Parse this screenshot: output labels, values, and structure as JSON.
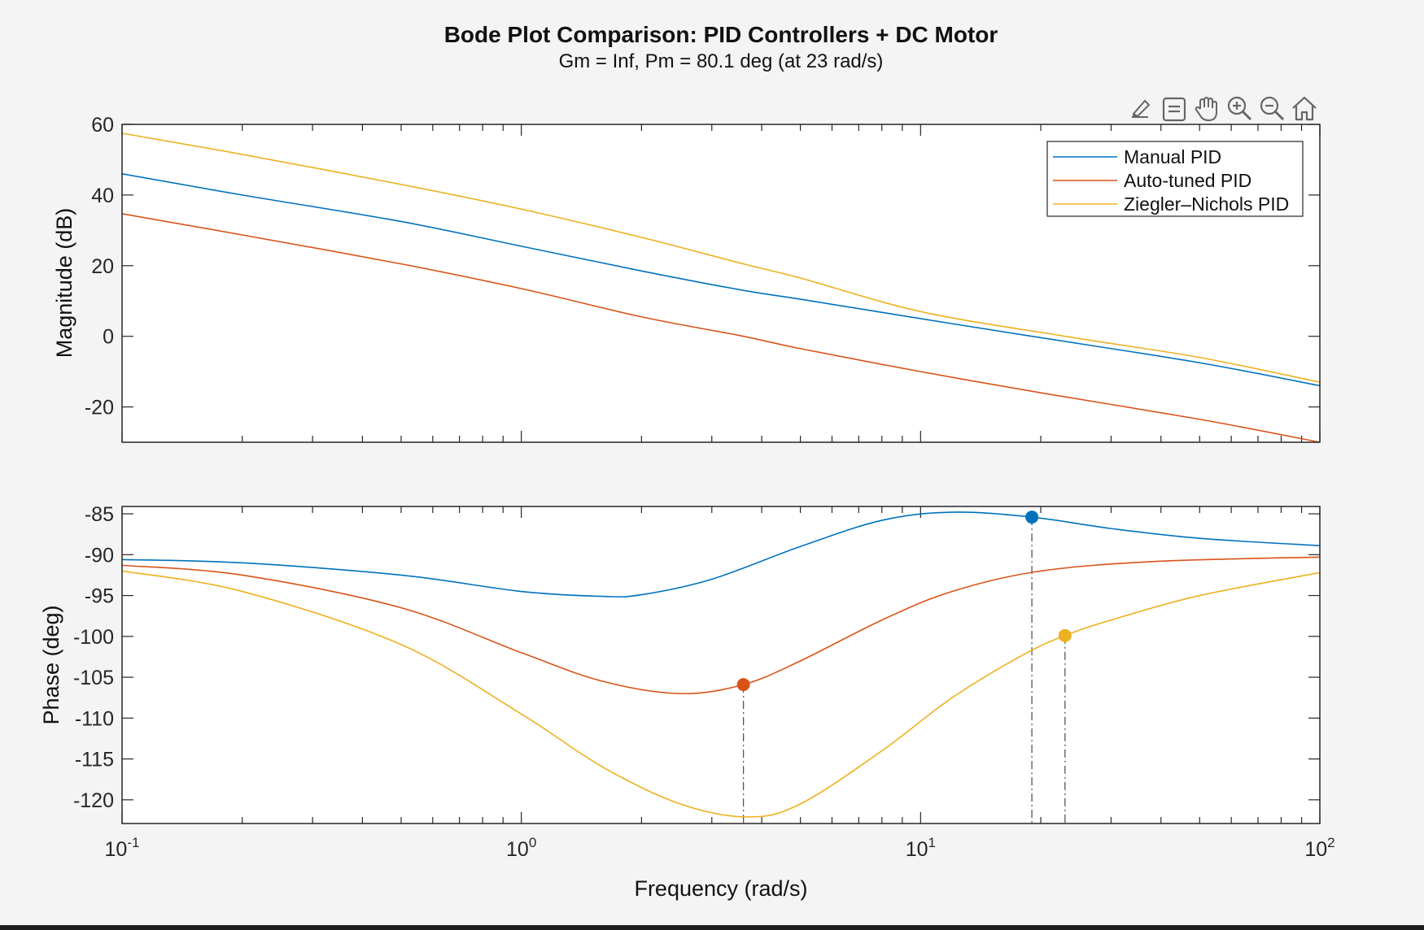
{
  "toolbar": {
    "items": [
      {
        "name": "brush-icon",
        "icon": "brush-icon"
      },
      {
        "name": "data-tips-icon",
        "icon": "data-tips-icon"
      },
      {
        "name": "pan-icon",
        "icon": "pan-icon"
      },
      {
        "name": "zoom-in-icon",
        "icon": "zoom-in-icon"
      },
      {
        "name": "zoom-out-icon",
        "icon": "zoom-out-icon"
      },
      {
        "name": "home-icon",
        "icon": "home-icon"
      }
    ]
  },
  "chart_data": [
    {
      "type": "line",
      "title": "Bode Plot Comparison: PID Controllers + DC Motor",
      "subtitle": "Gm = Inf,  Pm = 80.1 deg (at 23 rad/s)",
      "ylabel": "Magnitude (dB)",
      "xlabel": "",
      "x_scale": "log",
      "xlim": [
        0.1,
        100
      ],
      "ylim": [
        -30,
        60
      ],
      "yticks": [
        -20,
        0,
        20,
        40,
        60
      ],
      "legend": {
        "placement": "top-right",
        "entries": [
          "Manual PID",
          "Auto-tuned PID",
          "Ziegler–Nichols PID"
        ]
      },
      "series": [
        {
          "name": "Manual PID",
          "color": "#0072BD",
          "x": [
            0.1,
            0.2,
            0.5,
            1,
            2,
            3.6,
            5,
            10,
            19,
            50,
            100
          ],
          "y": [
            46,
            40,
            32.5,
            25.5,
            18.5,
            13,
            10.5,
            5,
            0,
            -7.5,
            -14
          ]
        },
        {
          "name": "Auto-tuned PID",
          "color": "#D95319",
          "x": [
            0.1,
            0.2,
            0.5,
            1,
            2,
            3.6,
            5,
            10,
            20,
            50,
            100
          ],
          "y": [
            34.7,
            28.7,
            20.5,
            13.5,
            5.5,
            0,
            -3.5,
            -10,
            -16,
            -23.5,
            -30
          ]
        },
        {
          "name": "Ziegler–Nichols PID",
          "color": "#EDB120",
          "x": [
            0.1,
            0.2,
            0.5,
            1,
            2,
            3.6,
            5,
            10,
            23,
            50,
            100
          ],
          "y": [
            57.5,
            51.5,
            43,
            36,
            28,
            20.5,
            16.5,
            7,
            0,
            -6,
            -13
          ]
        }
      ]
    },
    {
      "type": "line",
      "title": "",
      "ylabel": "Phase (deg)",
      "xlabel": "Frequency (rad/s)",
      "x_scale": "log",
      "xlim": [
        0.1,
        100
      ],
      "ylim": [
        -122.9,
        -84.1
      ],
      "yticks": [
        -120,
        -115,
        -110,
        -105,
        -100,
        -95,
        -90,
        -85
      ],
      "xticks": [
        {
          "value": 0.1,
          "base": "10",
          "exp": "-1"
        },
        {
          "value": 1,
          "base": "10",
          "exp": "0"
        },
        {
          "value": 10,
          "base": "10",
          "exp": "1"
        },
        {
          "value": 100,
          "base": "10",
          "exp": "2"
        }
      ],
      "series": [
        {
          "name": "Manual PID",
          "color": "#0072BD",
          "x": [
            0.1,
            0.2,
            0.5,
            1,
            1.6,
            2,
            3,
            5,
            8,
            12,
            19,
            30,
            50,
            100
          ],
          "y": [
            -90.6,
            -91,
            -92.5,
            -94.5,
            -95.1,
            -94.9,
            -93,
            -89,
            -85.8,
            -84.8,
            -85.4,
            -86.8,
            -88,
            -88.9
          ]
        },
        {
          "name": "Auto-tuned PID",
          "color": "#D95319",
          "x": [
            0.1,
            0.2,
            0.5,
            1,
            1.6,
            2.5,
            3.6,
            5,
            8,
            12,
            20,
            40,
            100
          ],
          "y": [
            -91.3,
            -92.5,
            -96.5,
            -102,
            -105.5,
            -107,
            -105.9,
            -103,
            -98,
            -94.5,
            -92,
            -90.8,
            -90.3
          ]
        },
        {
          "name": "Ziegler–Nichols PID",
          "color": "#EDB120",
          "x": [
            0.1,
            0.2,
            0.5,
            1,
            1.6,
            2.5,
            3.7,
            5,
            8,
            12,
            18,
            23,
            30,
            50,
            100
          ],
          "y": [
            -92,
            -94.5,
            -101,
            -109.5,
            -116,
            -120.5,
            -122.1,
            -120.5,
            -114,
            -107.5,
            -102.3,
            -99.9,
            -98,
            -95,
            -92.2
          ]
        }
      ],
      "margin_markers": [
        {
          "series": "Manual PID",
          "x": 19,
          "y": -85.4,
          "color": "#0072BD"
        },
        {
          "series": "Auto-tuned PID",
          "x": 3.6,
          "y": -105.9,
          "color": "#D95319"
        },
        {
          "series": "Ziegler–Nichols PID",
          "x": 23,
          "y": -99.9,
          "color": "#EDB120"
        }
      ]
    }
  ]
}
